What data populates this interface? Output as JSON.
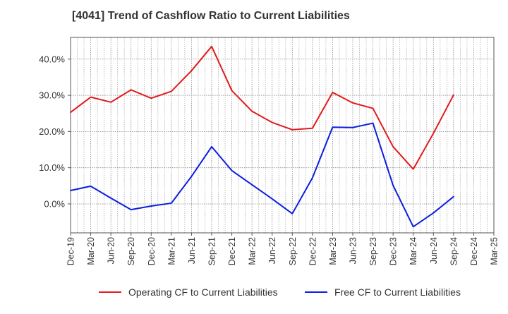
{
  "chart_data": {
    "type": "line",
    "title": "[4041]  Trend of Cashflow Ratio to Current Liabilities",
    "xlabel": "",
    "ylabel": "",
    "ylim": [
      -8,
      46
    ],
    "y_ticks": [
      0,
      10,
      20,
      30,
      40
    ],
    "y_tick_labels": [
      "0.0%",
      "10.0%",
      "20.0%",
      "30.0%",
      "40.0%"
    ],
    "categories": [
      "Dec-19",
      "Mar-20",
      "Jun-20",
      "Sep-20",
      "Dec-20",
      "Mar-21",
      "Jun-21",
      "Sep-21",
      "Dec-21",
      "Mar-22",
      "Jun-22",
      "Sep-22",
      "Dec-22",
      "Mar-23",
      "Jun-23",
      "Sep-23",
      "Dec-23",
      "Mar-24",
      "Jun-24",
      "Sep-24",
      "Dec-24",
      "Mar-25"
    ],
    "grid": true,
    "legend_position": "bottom",
    "series": [
      {
        "name": "Operating CF to Current Liabilities",
        "color": "#e31a1c",
        "values": [
          25.3,
          29.5,
          28.1,
          31.5,
          29.2,
          31.1,
          36.8,
          43.5,
          31.3,
          25.6,
          22.5,
          20.5,
          20.9,
          30.8,
          27.9,
          26.4,
          15.8,
          9.6,
          19.5,
          30.1,
          null,
          null
        ]
      },
      {
        "name": "Free CF to Current Liabilities",
        "color": "#0b1ee0",
        "values": [
          3.7,
          4.9,
          1.6,
          -1.6,
          -0.6,
          0.2,
          7.6,
          15.8,
          9.2,
          5.3,
          1.4,
          -2.7,
          7.2,
          21.2,
          21.1,
          22.3,
          5.1,
          -6.3,
          -2.5,
          2.0,
          null,
          null
        ]
      }
    ]
  }
}
